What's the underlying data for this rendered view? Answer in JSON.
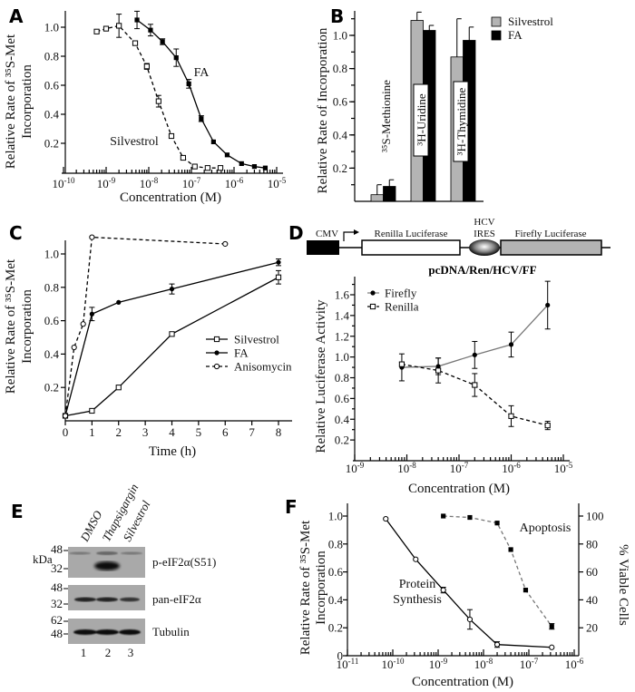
{
  "figure": {
    "panel_letters": [
      "A",
      "B",
      "C",
      "D",
      "E",
      "F"
    ]
  },
  "chart_data": [
    {
      "panel": "A",
      "type": "line",
      "x_scale": "log",
      "xlabel": "Concentration (M)",
      "ylabel": [
        "Relative Rate of ³⁵S-Met",
        "Incorporation"
      ],
      "xlim": [
        1e-10,
        1e-05
      ],
      "ylim": [
        0,
        1.1
      ],
      "xticks": [
        1e-10,
        1e-09,
        1e-08,
        1e-07,
        1e-06,
        1e-05
      ],
      "yticks": [
        0.2,
        0.4,
        0.6,
        0.8,
        1.0
      ],
      "grid": false,
      "series": [
        {
          "name": "Silvestrol",
          "marker": "open-square",
          "line": "dashed",
          "color": "#000000",
          "x": [
            6e-10,
            1e-09,
            2e-09,
            4.8e-09,
            9e-09,
            1.7e-08,
            3.4e-08,
            6.4e-08,
            1.2e-07,
            2.4e-07,
            4.8e-07
          ],
          "y": [
            0.97,
            0.99,
            1.01,
            0.89,
            0.73,
            0.49,
            0.25,
            0.1,
            0.04,
            0.03,
            0.03
          ],
          "err": [
            0.01,
            0,
            0.08,
            0.01,
            0.02,
            0.04,
            0,
            0,
            0,
            0,
            0
          ]
        },
        {
          "name": "FA",
          "marker": "filled-square",
          "line": "solid",
          "color": "#000000",
          "x": [
            5.3e-09,
            1.1e-08,
            2.1e-08,
            4.4e-08,
            8.7e-08,
            1.7e-07,
            3.3e-07,
            6.9e-07,
            1.5e-06,
            3e-06,
            5.4e-06
          ],
          "y": [
            1.05,
            0.98,
            0.9,
            0.79,
            0.61,
            0.37,
            0.21,
            0.12,
            0.06,
            0.04,
            0.03
          ],
          "err": [
            0.06,
            0.04,
            0.02,
            0.06,
            0.03,
            0.02,
            0,
            0,
            0,
            0,
            0
          ]
        }
      ]
    },
    {
      "panel": "B",
      "type": "bar",
      "ylabel": "Relative Rate of Incorporation",
      "ylim": [
        0,
        1.15
      ],
      "yticks": [
        0.2,
        0.4,
        0.6,
        0.8,
        1.0
      ],
      "categories": [
        "³⁵S-Methionine",
        "³H-Uridine",
        "³H-Thymidine"
      ],
      "legend": "top-right",
      "series": [
        {
          "name": "Silvestrol",
          "color": "#b4b4b4",
          "values": [
            0.04,
            1.09,
            0.87
          ],
          "err": [
            0.06,
            0.05,
            0.23
          ]
        },
        {
          "name": "FA",
          "color": "#000000",
          "values": [
            0.09,
            1.03,
            0.97
          ],
          "err": [
            0.04,
            0.03,
            0.08
          ]
        }
      ]
    },
    {
      "panel": "C",
      "type": "line",
      "x_scale": "linear",
      "xlabel": "Time (h)",
      "ylabel": [
        "Relative Rate of ³⁵S-Met",
        "Incorporation"
      ],
      "xlim": [
        0,
        8.5
      ],
      "ylim": [
        0,
        1.1
      ],
      "xticks": [
        0,
        1,
        2,
        3,
        4,
        5,
        6,
        7,
        8
      ],
      "yticks": [
        0.2,
        0.4,
        0.6,
        0.8,
        1.0
      ],
      "legend": "right",
      "series": [
        {
          "name": "Silvestrol",
          "marker": "open-square",
          "line": "solid",
          "color": "#000000",
          "x": [
            0,
            1,
            2,
            4,
            8
          ],
          "y": [
            0.03,
            0.06,
            0.2,
            0.52,
            0.86
          ],
          "err": [
            0,
            0,
            0,
            0,
            0.04
          ]
        },
        {
          "name": "FA",
          "marker": "filled-circle",
          "line": "solid",
          "color": "#000000",
          "x": [
            0,
            1,
            2,
            4,
            8
          ],
          "y": [
            0.03,
            0.64,
            0.71,
            0.79,
            0.95
          ],
          "err": [
            0,
            0.04,
            0,
            0.03,
            0.02
          ]
        },
        {
          "name": "Anisomycin",
          "marker": "open-circle",
          "line": "dashed",
          "color": "#000000",
          "x": [
            0,
            0.33,
            0.67,
            1,
            6
          ],
          "y": [
            0.03,
            0.44,
            0.58,
            1.1,
            1.06
          ],
          "err": [
            0,
            0,
            0,
            0,
            0
          ]
        }
      ]
    },
    {
      "panel": "D",
      "type": "line",
      "x_scale": "log",
      "construct": {
        "promoter": "CMV",
        "gene1": "Renilla Luciferase",
        "ires": [
          "HCV",
          "IRES"
        ],
        "gene2": "Firefly Luciferase",
        "name": "pcDNA/Ren/HCV/FF"
      },
      "xlabel": "Concentration (M)",
      "ylabel": [
        "Relative Luciferase Activity"
      ],
      "xlim": [
        1e-09,
        1e-05
      ],
      "ylim": [
        0,
        1.75
      ],
      "xticks": [
        1e-09,
        1e-08,
        1e-07,
        1e-06,
        1e-05
      ],
      "yticks": [
        0.2,
        0.4,
        0.6,
        0.8,
        1.0,
        1.2,
        1.4,
        1.6
      ],
      "legend": "top-left",
      "series": [
        {
          "name": "Firefly",
          "marker": "filled-circle",
          "line": "solid",
          "color": "#777777",
          "x": [
            8e-09,
            4e-08,
            2e-07,
            1e-06,
            5e-06
          ],
          "y": [
            0.9,
            0.91,
            1.02,
            1.12,
            1.5
          ],
          "err": [
            0.13,
            0.08,
            0.13,
            0.12,
            0.23
          ]
        },
        {
          "name": "Renilla",
          "marker": "open-square",
          "line": "dashed",
          "color": "#000000",
          "x": [
            8e-09,
            4e-08,
            2e-07,
            1e-06,
            5e-06
          ],
          "y": [
            0.93,
            0.87,
            0.73,
            0.43,
            0.34
          ],
          "err": [
            0.02,
            0.12,
            0.11,
            0.1,
            0.04
          ]
        }
      ]
    },
    {
      "panel": "F",
      "type": "line",
      "x_scale": "log",
      "xlabel": "Concentration (M)",
      "ylabel": [
        "Relative Rate of ³⁵S-Met",
        "Incorporation"
      ],
      "ylabel_right": "% Viable Cells",
      "xlim": [
        1e-11,
        1e-06
      ],
      "ylim": [
        0,
        1.05
      ],
      "ylim_right": [
        0,
        105
      ],
      "xticks": [
        1e-11,
        1e-10,
        1e-09,
        1e-08,
        1e-07,
        1e-06
      ],
      "yticks": [
        0,
        0.2,
        0.4,
        0.6,
        0.8,
        1.0
      ],
      "yticks_right": [
        20,
        40,
        60,
        80,
        100
      ],
      "series": [
        {
          "name": [
            "Protein",
            "Synthesis"
          ],
          "axis": "left",
          "marker": "open-circle",
          "line": "solid",
          "color": "#000000",
          "x": [
            7e-11,
            3.2e-10,
            1.3e-09,
            5e-09,
            2e-08,
            3.2e-07
          ],
          "y": [
            0.98,
            0.69,
            0.47,
            0.26,
            0.08,
            0.06
          ],
          "err": [
            0,
            0,
            0.02,
            0.07,
            0.02,
            0
          ]
        },
        {
          "name": "Apoptosis",
          "axis": "right",
          "marker": "filled-square",
          "line": "dashed",
          "color": "#777777",
          "x": [
            1.3e-09,
            5e-09,
            2e-08,
            4e-08,
            8.5e-08,
            3.2e-07
          ],
          "y": [
            100,
            99,
            95,
            76,
            47,
            21
          ],
          "err": [
            0,
            0,
            0,
            0,
            0,
            2
          ]
        }
      ]
    }
  ],
  "blot": {
    "panel": "E",
    "kda_label": "kDa",
    "lanes": [
      "DMSO",
      "Thapsigargin",
      "Silvestrol"
    ],
    "lane_numbers": [
      "1",
      "2",
      "3"
    ],
    "rows": [
      {
        "label": "p-eIF2α(S51)",
        "markers": [
          "48",
          "32"
        ]
      },
      {
        "label": "pan-eIF2α",
        "markers": [
          "48",
          "32"
        ]
      },
      {
        "label": "Tubulin",
        "markers": [
          "62",
          "48"
        ]
      }
    ]
  }
}
